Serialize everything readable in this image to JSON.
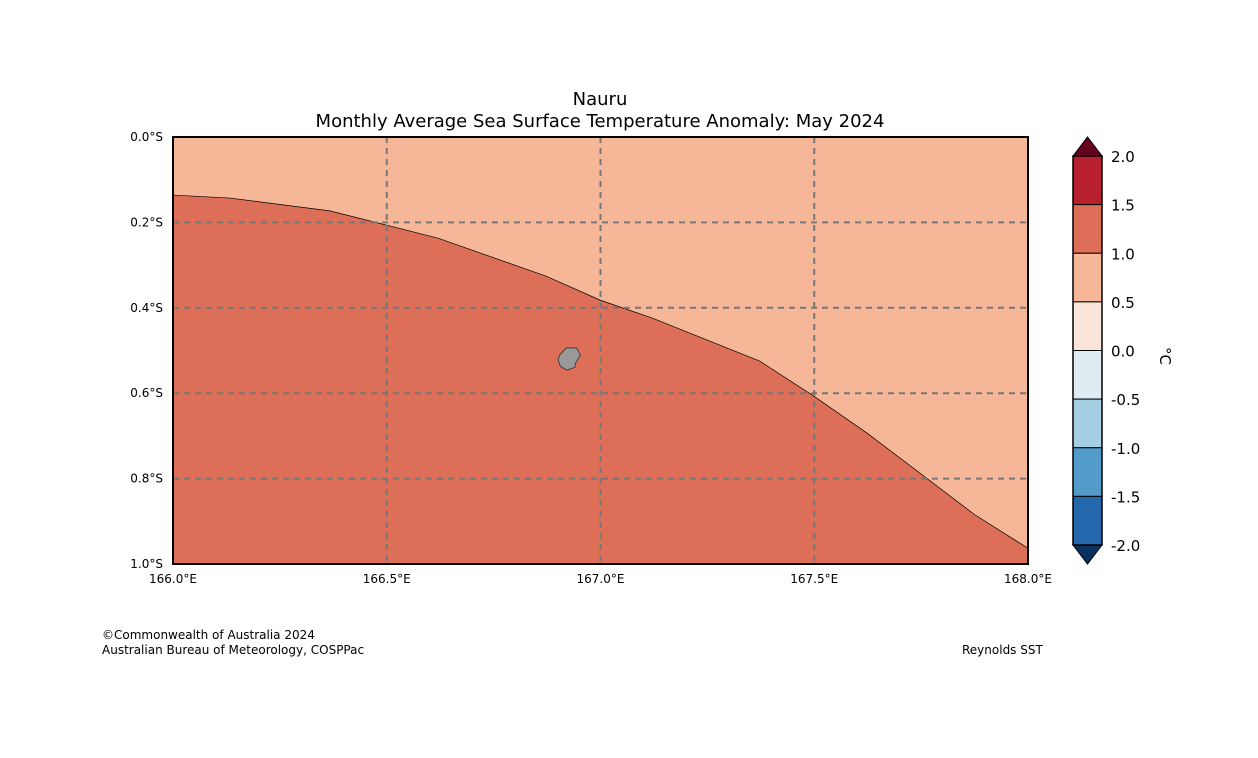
{
  "title": "Nauru",
  "subtitle": "Monthly Average Sea Surface Temperature Anomaly: May 2024",
  "footer": {
    "copyright": "©Commonwealth of Australia 2024",
    "agency": "Australian Bureau of Meteorology, COSPPac",
    "source": "Reynolds SST"
  },
  "chart_data": {
    "type": "map",
    "lon_range": [
      166.0,
      168.0
    ],
    "lat_range": [
      0.0,
      -1.0
    ],
    "x_ticks": [
      {
        "v": 166.0,
        "label": "166.0°E"
      },
      {
        "v": 166.5,
        "label": "166.5°E"
      },
      {
        "v": 167.0,
        "label": "167.0°E"
      },
      {
        "v": 167.5,
        "label": "167.5°E"
      },
      {
        "v": 168.0,
        "label": "168.0°E"
      }
    ],
    "y_ticks": [
      {
        "v": 0.0,
        "label": "0.0°S"
      },
      {
        "v": -0.2,
        "label": "0.2°S"
      },
      {
        "v": -0.4,
        "label": "0.4°S"
      },
      {
        "v": -0.6,
        "label": "0.6°S"
      },
      {
        "v": -0.8,
        "label": "0.8°S"
      },
      {
        "v": -1.0,
        "label": "1.0°S"
      }
    ],
    "grid": true,
    "regions": [
      {
        "name": "anomaly 0.5 to 1.0",
        "color": "#f6b799",
        "location": "north-east"
      },
      {
        "name": "anomaly 1.0 to 1.5",
        "color": "#dd6f58",
        "location": "south-west"
      }
    ],
    "contour_boundary": [
      [
        166.0,
        -0.136
      ],
      [
        166.133,
        -0.143
      ],
      [
        166.367,
        -0.173
      ],
      [
        166.62,
        -0.237
      ],
      [
        166.873,
        -0.326
      ],
      [
        166.999,
        -0.382
      ],
      [
        167.121,
        -0.424
      ],
      [
        167.373,
        -0.525
      ],
      [
        167.499,
        -0.607
      ],
      [
        167.623,
        -0.693
      ],
      [
        167.876,
        -0.885
      ],
      [
        168.0,
        -0.963
      ]
    ],
    "island": {
      "name": "Nauru",
      "color": "#999999",
      "outline": [
        [
          166.904,
          -0.511
        ],
        [
          166.92,
          -0.494
        ],
        [
          166.944,
          -0.494
        ],
        [
          166.953,
          -0.511
        ],
        [
          166.941,
          -0.53
        ],
        [
          166.941,
          -0.539
        ],
        [
          166.922,
          -0.546
        ],
        [
          166.906,
          -0.537
        ],
        [
          166.901,
          -0.522
        ]
      ]
    },
    "colorbar": {
      "label": "°C",
      "ticks": [
        "2.0",
        "1.5",
        "1.0",
        "0.5",
        "0.0",
        "-0.5",
        "-1.0",
        "-1.5",
        "-2.0"
      ],
      "extend_max_color": "#67001f",
      "extend_min_color": "#0a3160",
      "band_colors": [
        "#b8202e",
        "#dd6f58",
        "#f6b799",
        "#fae5da",
        "#e0ebf2",
        "#a7cfe4",
        "#539cc9",
        "#2467ac"
      ]
    }
  }
}
